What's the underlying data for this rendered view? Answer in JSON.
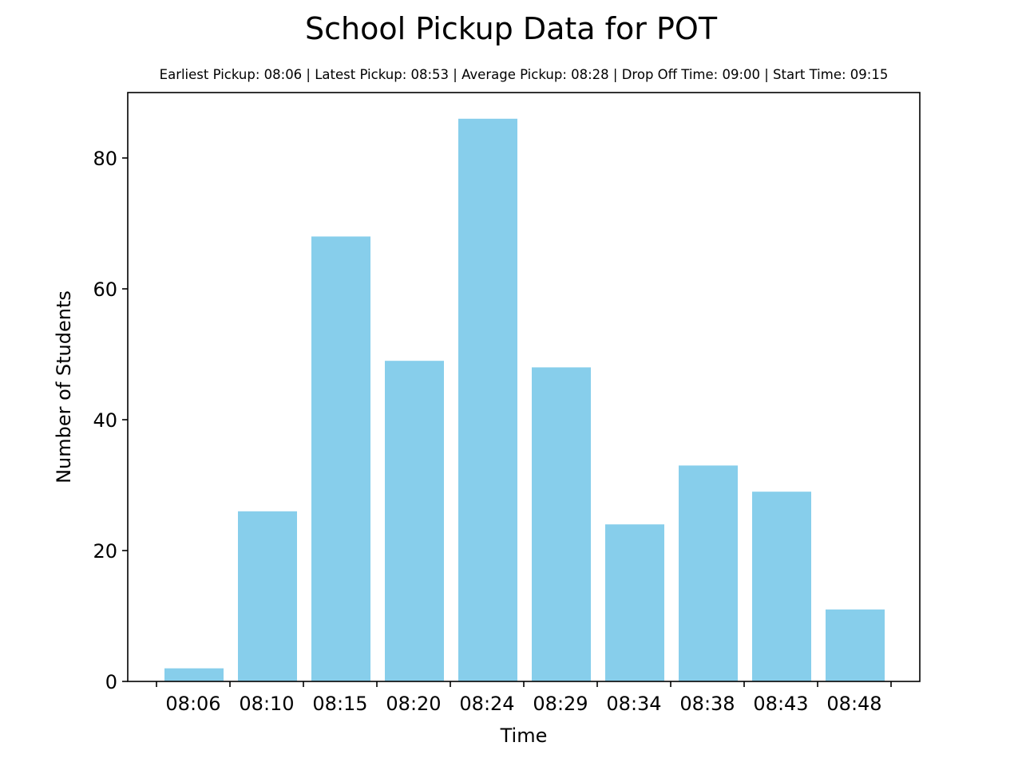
{
  "colors": {
    "bar": "#87CEEB",
    "axis": "#000000",
    "background": "#ffffff"
  },
  "chart_data": {
    "type": "bar",
    "title": "School Pickup Data for POT",
    "subtitle": "Earliest Pickup: 08:06 | Latest Pickup: 08:53 | Average Pickup: 08:28 | Drop Off Time: 09:00 | Start Time: 09:15",
    "xlabel": "Time",
    "ylabel": "Number of Students",
    "ylim": [
      0,
      90
    ],
    "yticks": [
      0,
      20,
      40,
      60,
      80
    ],
    "xtick_labels": [
      "08:06",
      "08:10",
      "08:15",
      "08:20",
      "08:24",
      "08:29",
      "08:34",
      "08:38",
      "08:43",
      "08:48"
    ],
    "values": [
      2,
      26,
      68,
      49,
      86,
      48,
      24,
      33,
      29,
      11
    ],
    "grid": false,
    "legend": "none"
  }
}
